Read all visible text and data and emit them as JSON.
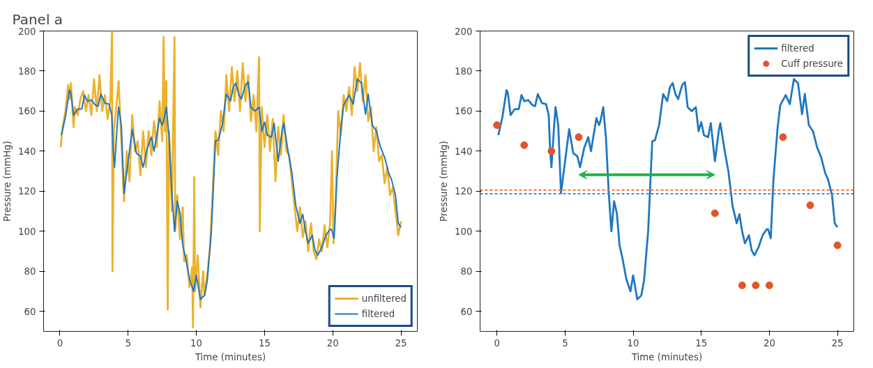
{
  "chart_data": [
    {
      "type": "line",
      "title": "Panel a",
      "xlabel": "Time (minutes)",
      "ylabel": "Pressure (mmHg)",
      "xlim": [
        -1.2,
        26.2
      ],
      "xticks": [
        0,
        5,
        10,
        15,
        20,
        25
      ],
      "ylim": [
        50,
        200
      ],
      "yticks": [
        60,
        80,
        100,
        120,
        140,
        160,
        180,
        200
      ],
      "grid": false,
      "legend": "bottom right",
      "series": [
        {
          "name": "unfiltered",
          "color": "#ebb22e",
          "x": [
            0.05,
            0.2,
            0.4,
            0.6,
            0.7,
            0.8,
            1.0,
            1.1,
            1.3,
            1.5,
            1.7,
            1.9,
            2.1,
            2.3,
            2.5,
            2.7,
            2.9,
            3.1,
            3.3,
            3.5,
            3.7,
            3.82,
            3.85,
            3.95,
            4.1,
            4.3,
            4.5,
            4.7,
            4.9,
            5.1,
            5.3,
            5.5,
            5.7,
            5.9,
            6.1,
            6.3,
            6.5,
            6.7,
            6.9,
            7.1,
            7.3,
            7.5,
            7.6,
            7.7,
            7.8,
            7.9,
            8.0,
            8.2,
            8.4,
            8.45,
            8.6,
            8.8,
            9.0,
            9.1,
            9.3,
            9.5,
            9.7,
            9.75,
            9.85,
            9.9,
            10.1,
            10.3,
            10.5,
            10.6,
            10.8,
            11.0,
            11.2,
            11.4,
            11.6,
            11.8,
            12.0,
            12.2,
            12.4,
            12.6,
            12.8,
            13.0,
            13.2,
            13.4,
            13.6,
            13.8,
            14.0,
            14.2,
            14.4,
            14.6,
            14.65,
            14.8,
            15.0,
            15.2,
            15.4,
            15.6,
            15.8,
            16.0,
            16.2,
            16.4,
            16.6,
            16.8,
            17.0,
            17.2,
            17.4,
            17.6,
            17.8,
            18.0,
            18.2,
            18.4,
            18.6,
            18.8,
            19.0,
            19.2,
            19.4,
            19.6,
            19.8,
            19.95,
            20.05,
            20.2,
            20.4,
            20.6,
            20.8,
            21.0,
            21.2,
            21.4,
            21.6,
            21.8,
            22.0,
            22.2,
            22.4,
            22.6,
            22.8,
            23.0,
            23.2,
            23.4,
            23.6,
            23.8,
            24.0,
            24.2,
            24.4,
            24.6,
            24.8,
            25.0
          ],
          "values": [
            142,
            152,
            160,
            173,
            166,
            174,
            152,
            162,
            158,
            166,
            170,
            160,
            168,
            158,
            176,
            160,
            178,
            160,
            168,
            156,
            166,
            200,
            80,
            150,
            160,
            175,
            145,
            115,
            140,
            125,
            158,
            140,
            145,
            128,
            150,
            132,
            150,
            138,
            155,
            142,
            165,
            145,
            197,
            150,
            175,
            61,
            150,
            110,
            197,
            100,
            118,
            96,
            112,
            85,
            88,
            72,
            82,
            52,
            127,
            70,
            88,
            62,
            80,
            68,
            78,
            92,
            120,
            150,
            138,
            160,
            150,
            178,
            160,
            182,
            165,
            180,
            160,
            184,
            165,
            178,
            155,
            168,
            150,
            187,
            100,
            162,
            142,
            158,
            140,
            156,
            125,
            152,
            138,
            158,
            140,
            138,
            125,
            112,
            100,
            112,
            97,
            105,
            90,
            104,
            90,
            86,
            96,
            90,
            103,
            92,
            104,
            140,
            94,
            112,
            160,
            148,
            168,
            160,
            172,
            158,
            182,
            170,
            184,
            165,
            178,
            155,
            162,
            140,
            152,
            135,
            138,
            124,
            132,
            118,
            122,
            110,
            98,
            105
          ]
        },
        {
          "name": "filtered",
          "color": "#1f77c0",
          "x": [
            0.1,
            0.4,
            0.7,
            0.8,
            1.0,
            1.3,
            1.6,
            1.8,
            2.0,
            2.3,
            2.6,
            2.8,
            3.0,
            3.3,
            3.6,
            3.8,
            3.9,
            4.0,
            4.2,
            4.3,
            4.5,
            4.7,
            5.0,
            5.3,
            5.6,
            5.9,
            6.1,
            6.4,
            6.7,
            6.9,
            7.3,
            7.5,
            7.6,
            7.8,
            8.0,
            8.2,
            8.4,
            8.6,
            8.8,
            9.0,
            9.2,
            9.5,
            9.8,
            10.0,
            10.3,
            10.6,
            10.8,
            11.1,
            11.4,
            11.6,
            11.9,
            12.2,
            12.5,
            12.7,
            12.9,
            13.1,
            13.3,
            13.6,
            13.8,
            14.0,
            14.3,
            14.6,
            14.8,
            15.0,
            15.2,
            15.5,
            15.7,
            16.0,
            16.3,
            16.4,
            16.7,
            17.0,
            17.3,
            17.6,
            17.8,
            18.0,
            18.2,
            18.5,
            18.7,
            18.9,
            19.2,
            19.5,
            19.8,
            19.9,
            20.1,
            20.3,
            20.6,
            20.8,
            21.2,
            21.5,
            21.8,
            22.1,
            22.4,
            22.6,
            22.9,
            23.2,
            23.5,
            23.8,
            24.1,
            24.3,
            24.6,
            24.8,
            25.0
          ],
          "values": [
            148,
            157,
            170.5,
            169,
            158,
            161,
            161,
            168,
            165,
            165.5,
            163,
            162.5,
            168.5,
            164,
            163.5,
            158,
            141,
            132,
            153,
            162,
            153,
            119,
            135,
            151,
            139,
            137.5,
            132,
            141.5,
            147,
            140,
            156.5,
            153,
            155,
            162,
            147,
            120,
            100,
            115,
            109,
            93,
            87,
            76,
            70,
            78,
            66,
            68,
            75.5,
            100,
            145,
            145.5,
            153,
            168.5,
            165,
            172,
            174,
            168.5,
            166,
            173,
            174.5,
            162,
            160,
            162,
            150,
            154.5,
            148,
            147,
            154,
            135,
            151,
            154,
            141,
            129.5,
            112.5,
            104,
            108.5,
            100,
            94,
            98,
            90.5,
            88,
            92,
            98,
            101,
            101,
            96.5,
            126,
            151.5,
            163,
            168,
            163.5,
            176,
            174,
            158.5,
            168.5,
            153,
            150,
            142,
            137,
            129,
            126,
            118,
            104,
            102
          ]
        }
      ]
    },
    {
      "type": "line",
      "xlabel": "Time (minutes)",
      "ylabel": "Pressure (mmHg)",
      "xlim": [
        -1.24,
        26.2
      ],
      "xticks": [
        0,
        5,
        10,
        15,
        20,
        25
      ],
      "ylim": [
        50,
        200
      ],
      "yticks": [
        60,
        80,
        100,
        120,
        140,
        160,
        180,
        200
      ],
      "grid": false,
      "legend": "top right",
      "ref_lines": [
        {
          "axis": "y",
          "value": 120.6,
          "color": "#f07038",
          "line_style": "dashed"
        },
        {
          "axis": "y",
          "value": 118.7,
          "color": "#3a8ee0",
          "line_style": "dashed"
        }
      ],
      "series": [
        {
          "name": "filtered",
          "type": "line",
          "color": "#1f77c0",
          "x": [
            0.1,
            0.4,
            0.7,
            0.8,
            1.0,
            1.3,
            1.6,
            1.8,
            2.0,
            2.3,
            2.6,
            2.8,
            3.0,
            3.3,
            3.6,
            3.8,
            3.9,
            4.0,
            4.2,
            4.3,
            4.5,
            4.7,
            5.0,
            5.3,
            5.6,
            5.9,
            6.1,
            6.4,
            6.7,
            6.9,
            7.3,
            7.5,
            7.6,
            7.8,
            8.0,
            8.2,
            8.4,
            8.6,
            8.8,
            9.0,
            9.2,
            9.5,
            9.8,
            10.0,
            10.3,
            10.6,
            10.8,
            11.1,
            11.4,
            11.6,
            11.9,
            12.2,
            12.5,
            12.7,
            12.9,
            13.1,
            13.3,
            13.6,
            13.8,
            14.0,
            14.3,
            14.6,
            14.8,
            15.0,
            15.2,
            15.5,
            15.7,
            16.0,
            16.3,
            16.4,
            16.7,
            17.0,
            17.3,
            17.6,
            17.8,
            18.0,
            18.2,
            18.5,
            18.7,
            18.9,
            19.2,
            19.5,
            19.8,
            19.9,
            20.1,
            20.3,
            20.6,
            20.8,
            21.2,
            21.5,
            21.8,
            22.1,
            22.4,
            22.6,
            22.9,
            23.2,
            23.5,
            23.8,
            24.1,
            24.3,
            24.6,
            24.8,
            25.0
          ],
          "values": [
            148,
            157,
            170.5,
            169,
            158,
            161,
            161,
            168,
            165,
            165.5,
            163,
            162.5,
            168.5,
            164,
            163.5,
            158,
            141,
            132,
            153,
            162,
            153,
            119,
            135,
            151,
            139,
            137.5,
            132,
            141.5,
            147,
            140,
            156.5,
            153,
            155,
            162,
            147,
            120,
            100,
            115,
            109,
            93,
            87,
            76,
            70,
            78,
            66,
            68,
            75.5,
            100,
            145,
            145.5,
            153,
            168.5,
            165,
            172,
            174,
            168.5,
            166,
            173,
            174.5,
            162,
            160,
            162,
            150,
            154.5,
            148,
            147,
            154,
            135,
            151,
            154,
            141,
            129.5,
            112.5,
            104,
            108.5,
            100,
            94,
            98,
            90.5,
            88,
            92,
            98,
            101,
            101,
            96.5,
            126,
            151.5,
            163,
            168,
            163.5,
            176,
            174,
            158.5,
            168.5,
            153,
            150,
            142,
            137,
            129,
            126,
            118,
            104,
            102
          ]
        },
        {
          "name": "Cuff pressure",
          "type": "scatter",
          "marker": "circle",
          "color": "#e2552b",
          "x": [
            0,
            2,
            4,
            6,
            16,
            18,
            19,
            20,
            21,
            23,
            25
          ],
          "values": [
            153,
            143,
            140,
            147,
            109,
            73,
            73,
            73,
            147,
            113,
            93
          ]
        }
      ]
    }
  ]
}
